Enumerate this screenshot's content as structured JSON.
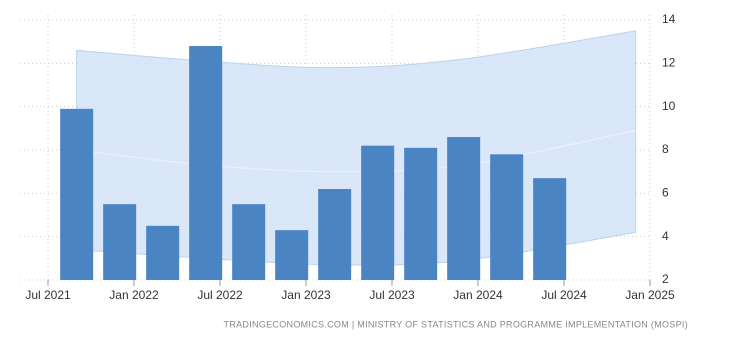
{
  "chart_data": {
    "type": "bar",
    "x": [
      "2021-09",
      "2021-12",
      "2022-03",
      "2022-06",
      "2022-09",
      "2022-12",
      "2023-03",
      "2023-06",
      "2023-09",
      "2023-12",
      "2024-03",
      "2024-06"
    ],
    "values": [
      9.9,
      5.5,
      4.5,
      12.8,
      5.5,
      4.3,
      6.2,
      8.2,
      8.1,
      8.6,
      7.8,
      6.7
    ],
    "color": "#4a84c3",
    "band": {
      "x": [
        "2021-09",
        "2022-06",
        "2023-03",
        "2023-12",
        "2024-12"
      ],
      "upper": [
        12.6,
        12.1,
        11.8,
        12.2,
        13.5
      ],
      "mid": [
        8.0,
        7.3,
        7.0,
        7.3,
        8.9
      ],
      "lower": [
        3.4,
        3.0,
        2.7,
        2.9,
        4.2
      ],
      "color": "#cfe1f7"
    },
    "ylim": [
      2,
      14
    ],
    "yticks": [
      2,
      4,
      6,
      8,
      10,
      12,
      14
    ],
    "xlim": [
      "2021-07",
      "2025-01"
    ],
    "xticks": [
      {
        "value": "2021-07",
        "label": "Jul 2021"
      },
      {
        "value": "2022-01",
        "label": "Jan 2022"
      },
      {
        "value": "2022-07",
        "label": "Jul 2022"
      },
      {
        "value": "2023-01",
        "label": "Jan 2023"
      },
      {
        "value": "2023-07",
        "label": "Jul 2023"
      },
      {
        "value": "2024-01",
        "label": "Jan 2024"
      },
      {
        "value": "2024-07",
        "label": "Jul 2024"
      },
      {
        "value": "2025-01",
        "label": "Jan 2025"
      }
    ],
    "grid": true,
    "source": "TRADINGECONOMICS.COM | MINISTRY OF STATISTICS AND PROGRAMME IMPLEMENTATION (MOSPI)"
  }
}
